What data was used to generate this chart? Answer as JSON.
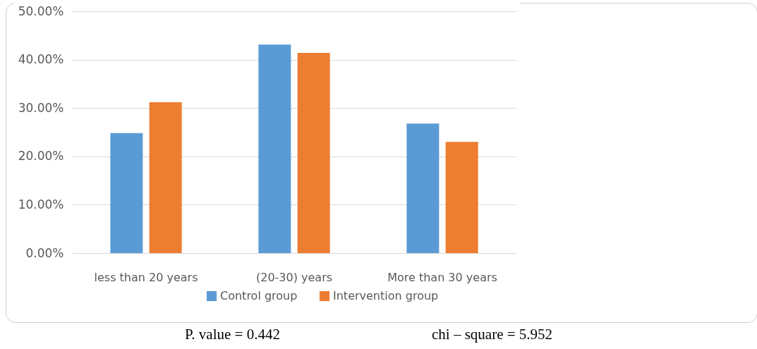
{
  "chart_data": {
    "type": "bar",
    "categories": [
      "less than 20 years",
      "(20-30) years",
      "More than 30 years"
    ],
    "series": [
      {
        "name": "Control group",
        "color": "#5b9bd5",
        "values": [
          24.8,
          43.1,
          26.8
        ]
      },
      {
        "name": "Intervention  group",
        "color": "#ed7d31",
        "values": [
          31.2,
          41.4,
          23.0
        ]
      }
    ],
    "ylim": [
      0,
      50
    ],
    "yticks": [
      {
        "value": 0,
        "label": "0.00%"
      },
      {
        "value": 10,
        "label": "10.00%"
      },
      {
        "value": 20,
        "label": "20.00%"
      },
      {
        "value": 30,
        "label": "30.00%"
      },
      {
        "value": 40,
        "label": "40.00%"
      },
      {
        "value": 50,
        "label": "50.00%"
      }
    ],
    "grid": "y",
    "legend": "bottom",
    "annotations": [
      "P. value = 0.442",
      "chi – square = 5.952"
    ]
  }
}
